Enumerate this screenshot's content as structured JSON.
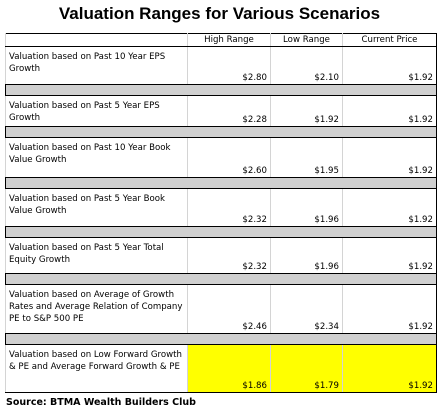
{
  "title": "Valuation Ranges for Various Scenarios",
  "table": {
    "header": [
      "High Range",
      "Low Range",
      "Current Price"
    ],
    "rows": [
      [
        "Valuation based on Past 10 Year EPS Growth",
        "$2.80",
        "$2.10",
        "$1.92"
      ],
      [
        "Valuation based on Past 5 Year EPS Growth",
        "$2.28",
        "$1.92",
        "$1.92"
      ],
      [
        "Valuation based on Past 10 Year Book Value Growth",
        "$2.60",
        "$1.95",
        "$1.92"
      ],
      [
        "Valuation based on Past 5 Year Book Value Growth",
        "$2.32",
        "$1.96",
        "$1.92"
      ],
      [
        "Valuation based on Past 5 Year Total Equity Growth",
        "$2.32",
        "$1.96",
        "$1.92"
      ],
      [
        "Valuation based on Average of Growth Rates and Average Relation of Company PE to S&P 500 PE",
        "$2.46",
        "$2.34",
        "$1.92"
      ],
      [
        "Valuation based on Low Forward Growth & PE and Average Forward Growth & PE",
        "$1.86",
        "$1.79",
        "$1.92"
      ]
    ]
  },
  "source": "Source: BTMA Wealth Builders Club"
}
